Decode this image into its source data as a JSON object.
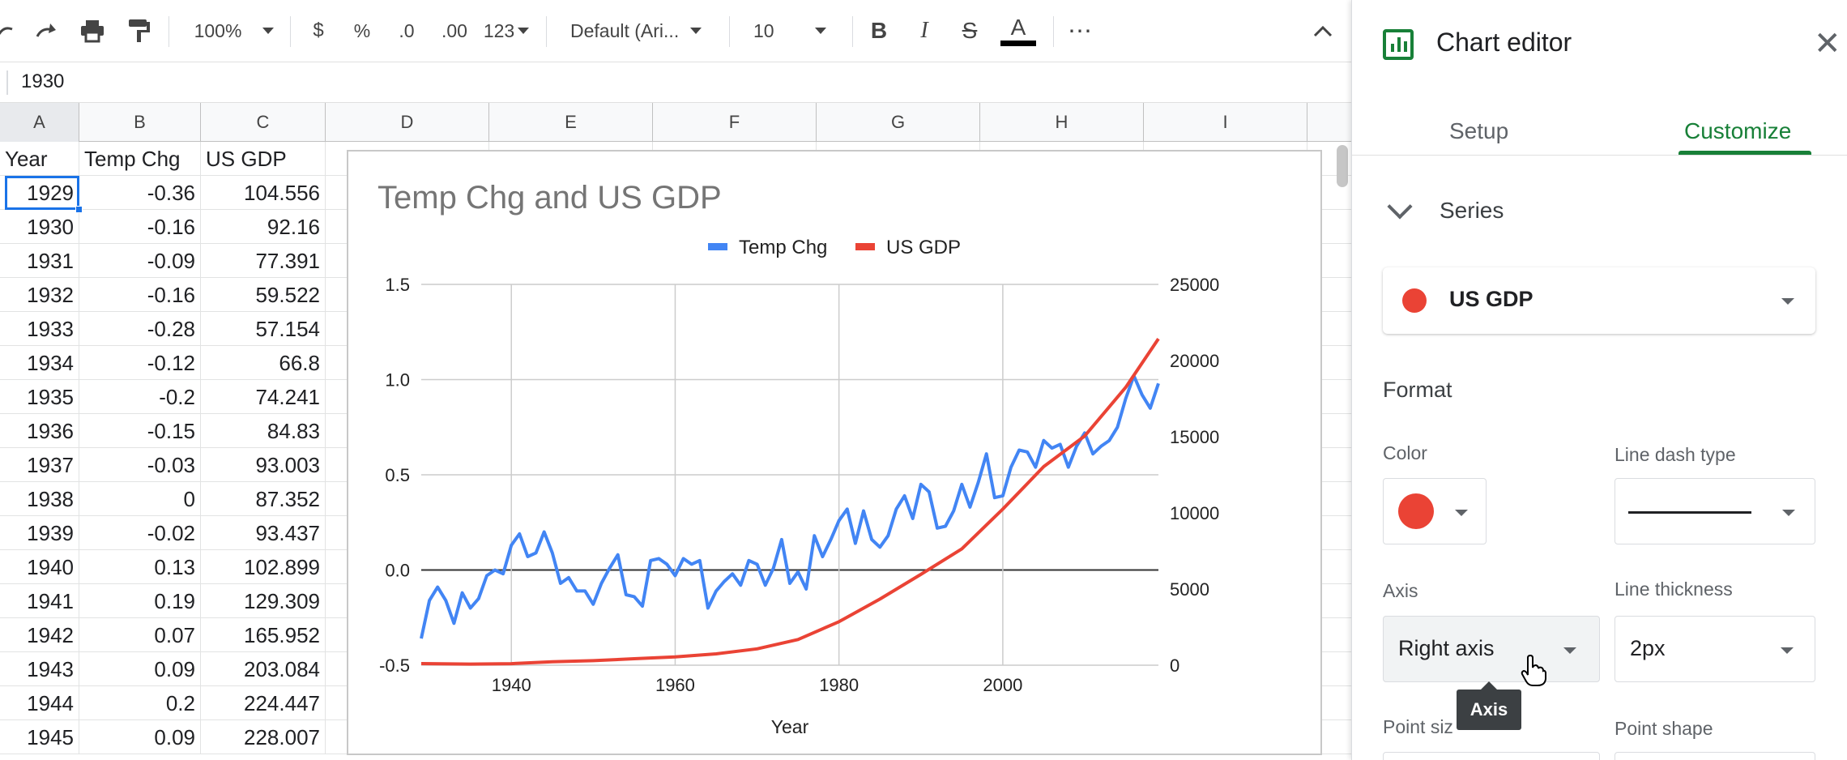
{
  "toolbar": {
    "zoom": "100%",
    "currency": "$",
    "percent": "%",
    "decrease_decimal": ".0",
    "increase_decimal": ".00",
    "more_formats": "123",
    "font": "Default (Ari...",
    "font_size": "10",
    "bold": "B",
    "italic": "I",
    "strike": "S",
    "text_color_letter": "A",
    "more": "⋯"
  },
  "formula_bar": {
    "value": "1930"
  },
  "columns": [
    "A",
    "B",
    "C",
    "D",
    "E",
    "F",
    "G",
    "H",
    "I"
  ],
  "table": {
    "headers": [
      "Year",
      "Temp Chg",
      "US GDP"
    ],
    "rows": [
      [
        "1929",
        "-0.36",
        "104.556"
      ],
      [
        "1930",
        "-0.16",
        "92.16"
      ],
      [
        "1931",
        "-0.09",
        "77.391"
      ],
      [
        "1932",
        "-0.16",
        "59.522"
      ],
      [
        "1933",
        "-0.28",
        "57.154"
      ],
      [
        "1934",
        "-0.12",
        "66.8"
      ],
      [
        "1935",
        "-0.2",
        "74.241"
      ],
      [
        "1936",
        "-0.15",
        "84.83"
      ],
      [
        "1937",
        "-0.03",
        "93.003"
      ],
      [
        "1938",
        "0",
        "87.352"
      ],
      [
        "1939",
        "-0.02",
        "93.437"
      ],
      [
        "1940",
        "0.13",
        "102.899"
      ],
      [
        "1941",
        "0.19",
        "129.309"
      ],
      [
        "1942",
        "0.07",
        "165.952"
      ],
      [
        "1943",
        "0.09",
        "203.084"
      ],
      [
        "1944",
        "0.2",
        "224.447"
      ],
      [
        "1945",
        "0.09",
        "228.007"
      ]
    ]
  },
  "chart_data": {
    "type": "line",
    "title": "Temp Chg and US GDP",
    "xlabel": "Year",
    "xlim": [
      1929,
      2019
    ],
    "x_ticks": [
      1940,
      1960,
      1980,
      2000
    ],
    "ylim_left": [
      -0.5,
      1.5
    ],
    "yticks_left": [
      "-0.5",
      "0.0",
      "0.5",
      "1.0",
      "1.5"
    ],
    "ylim_right": [
      0,
      25000
    ],
    "yticks_right": [
      "0",
      "5000",
      "10000",
      "15000",
      "20000",
      "25000"
    ],
    "legend": "top",
    "grid": true,
    "series": [
      {
        "name": "Temp Chg",
        "axis": "left",
        "color": "#4285f4",
        "x": [
          1929,
          1930,
          1931,
          1932,
          1933,
          1934,
          1935,
          1936,
          1937,
          1938,
          1939,
          1940,
          1941,
          1942,
          1943,
          1944,
          1945,
          1946,
          1947,
          1948,
          1949,
          1950,
          1951,
          1952,
          1953,
          1954,
          1955,
          1956,
          1957,
          1958,
          1959,
          1960,
          1961,
          1962,
          1963,
          1964,
          1965,
          1966,
          1967,
          1968,
          1969,
          1970,
          1971,
          1972,
          1973,
          1974,
          1975,
          1976,
          1977,
          1978,
          1979,
          1980,
          1981,
          1982,
          1983,
          1984,
          1985,
          1986,
          1987,
          1988,
          1989,
          1990,
          1991,
          1992,
          1993,
          1994,
          1995,
          1996,
          1997,
          1998,
          1999,
          2000,
          2001,
          2002,
          2003,
          2004,
          2005,
          2006,
          2007,
          2008,
          2009,
          2010,
          2011,
          2012,
          2013,
          2014,
          2015,
          2016,
          2017,
          2018,
          2019
        ],
        "values": [
          -0.36,
          -0.16,
          -0.09,
          -0.16,
          -0.28,
          -0.12,
          -0.2,
          -0.15,
          -0.03,
          0,
          -0.02,
          0.13,
          0.19,
          0.07,
          0.09,
          0.2,
          0.09,
          -0.07,
          -0.04,
          -0.11,
          -0.11,
          -0.18,
          -0.07,
          0.01,
          0.08,
          -0.13,
          -0.14,
          -0.19,
          0.05,
          0.06,
          0.03,
          -0.03,
          0.06,
          0.03,
          0.05,
          -0.2,
          -0.11,
          -0.06,
          -0.02,
          -0.08,
          0.05,
          0.03,
          -0.08,
          0.01,
          0.16,
          -0.07,
          -0.01,
          -0.1,
          0.18,
          0.07,
          0.16,
          0.26,
          0.32,
          0.14,
          0.31,
          0.16,
          0.12,
          0.18,
          0.32,
          0.39,
          0.27,
          0.45,
          0.41,
          0.22,
          0.23,
          0.31,
          0.45,
          0.33,
          0.46,
          0.61,
          0.38,
          0.39,
          0.54,
          0.63,
          0.62,
          0.54,
          0.68,
          0.64,
          0.66,
          0.54,
          0.65,
          0.72,
          0.61,
          0.65,
          0.68,
          0.75,
          0.9,
          1.02,
          0.92,
          0.85,
          0.98
        ]
      },
      {
        "name": "US GDP",
        "axis": "right",
        "color": "#ea4335",
        "x": [
          1929,
          1935,
          1940,
          1945,
          1950,
          1955,
          1960,
          1965,
          1970,
          1975,
          1980,
          1985,
          1990,
          1995,
          2000,
          2005,
          2010,
          2015,
          2019
        ],
        "values": [
          104.6,
          74.2,
          102.9,
          228.0,
          299.8,
          425.5,
          542.4,
          743.7,
          1073.3,
          1684.9,
          2857.3,
          4339.0,
          5963.1,
          7639.7,
          10252.3,
          13036.6,
          15049.0,
          18238.3,
          21433.2
        ]
      }
    ]
  },
  "editor": {
    "title": "Chart editor",
    "tabs": {
      "setup": "Setup",
      "customize": "Customize"
    },
    "series_section": "Series",
    "selected_series": "US GDP",
    "format_section": "Format",
    "color_label": "Color",
    "dash_label": "Line dash type",
    "axis_label": "Axis",
    "axis_value": "Right axis",
    "thickness_label": "Line thickness",
    "thickness_value": "2px",
    "point_size_label": "Point siz",
    "point_shape_label": "Point shape",
    "tooltip": "Axis"
  }
}
